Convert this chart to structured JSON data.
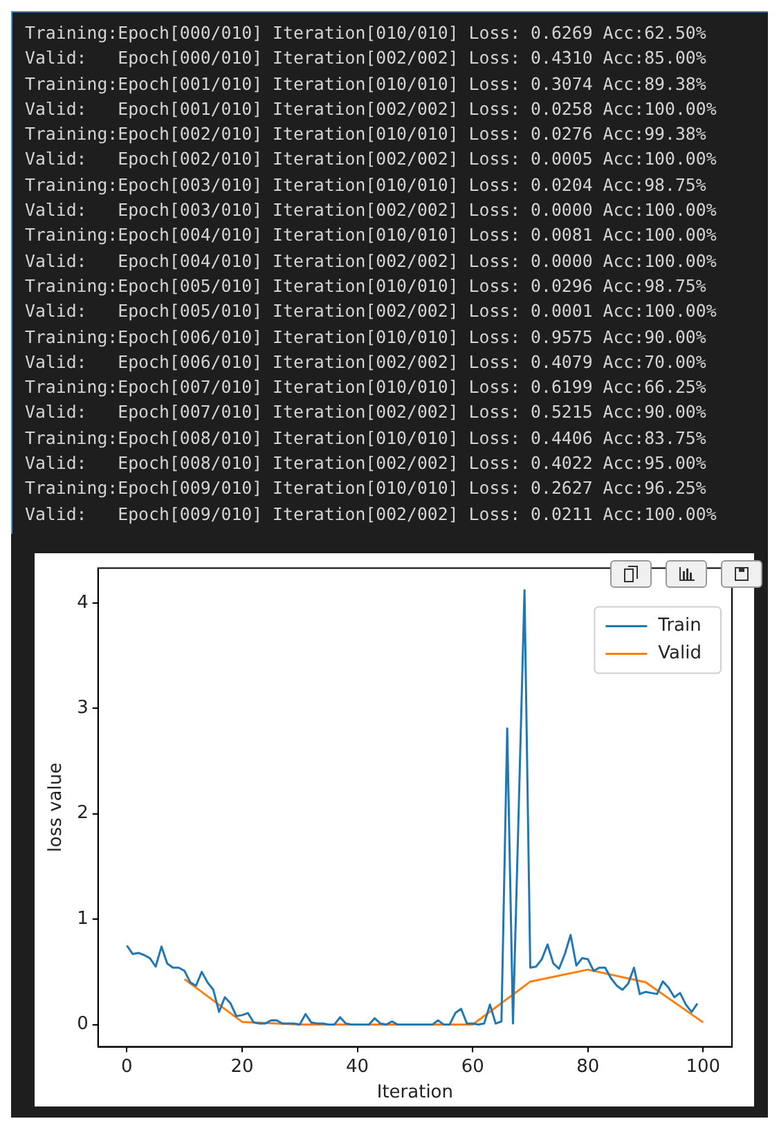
{
  "chart_data": {
    "type": "line",
    "xlabel": "Iteration",
    "ylabel": "loss value",
    "annotations": [
      "Training:Epoch[000/010] Iteration[010/010] Loss: 0.6269 Acc:62.50%",
      "Valid:   Epoch[000/010] Iteration[002/002] Loss: 0.4310 Acc:85.00%",
      "Training:Epoch[001/010] Iteration[010/010] Loss: 0.3074 Acc:89.38%",
      "Valid:   Epoch[001/010] Iteration[002/002] Loss: 0.0258 Acc:100.00%",
      "Training:Epoch[002/010] Iteration[010/010] Loss: 0.0276 Acc:99.38%",
      "Valid:   Epoch[002/010] Iteration[002/002] Loss: 0.0005 Acc:100.00%",
      "Training:Epoch[003/010] Iteration[010/010] Loss: 0.0204 Acc:98.75%",
      "Valid:   Epoch[003/010] Iteration[002/002] Loss: 0.0000 Acc:100.00%",
      "Training:Epoch[004/010] Iteration[010/010] Loss: 0.0081 Acc:100.00%",
      "Valid:   Epoch[004/010] Iteration[002/002] Loss: 0.0000 Acc:100.00%",
      "Training:Epoch[005/010] Iteration[010/010] Loss: 0.0296 Acc:98.75%",
      "Valid:   Epoch[005/010] Iteration[002/002] Loss: 0.0001 Acc:100.00%",
      "Training:Epoch[006/010] Iteration[010/010] Loss: 0.9575 Acc:90.00%",
      "Valid:   Epoch[006/010] Iteration[002/002] Loss: 0.4079 Acc:70.00%",
      "Training:Epoch[007/010] Iteration[010/010] Loss: 0.6199 Acc:66.25%",
      "Valid:   Epoch[007/010] Iteration[002/002] Loss: 0.5215 Acc:90.00%",
      "Training:Epoch[008/010] Iteration[010/010] Loss: 0.4406 Acc:83.75%",
      "Valid:   Epoch[008/010] Iteration[002/002] Loss: 0.4022 Acc:95.00%",
      "Training:Epoch[009/010] Iteration[010/010] Loss: 0.2627 Acc:96.25%",
      "Valid:   Epoch[009/010] Iteration[002/002] Loss: 0.0211 Acc:100.00%"
    ],
    "series": [
      {
        "name": "Train",
        "color": "#1f77b4",
        "x": [
          0,
          1,
          2,
          3,
          4,
          5,
          6,
          7,
          8,
          9,
          10,
          11,
          12,
          13,
          14,
          15,
          16,
          17,
          18,
          19,
          20,
          21,
          22,
          23,
          24,
          25,
          26,
          27,
          28,
          29,
          30,
          31,
          32,
          33,
          34,
          35,
          36,
          37,
          38,
          39,
          40,
          41,
          42,
          43,
          44,
          45,
          46,
          47,
          48,
          49,
          50,
          51,
          52,
          53,
          54,
          55,
          56,
          57,
          58,
          59,
          60,
          61,
          62,
          63,
          64,
          65,
          66,
          67,
          68,
          69,
          70,
          71,
          72,
          73,
          74,
          75,
          76,
          77,
          78,
          79,
          80,
          81,
          82,
          83,
          84,
          85,
          86,
          87,
          88,
          89,
          90,
          91,
          92,
          93,
          94,
          95,
          96,
          97,
          98,
          99
        ],
        "values": [
          0.75,
          0.67,
          0.68,
          0.66,
          0.63,
          0.55,
          0.74,
          0.58,
          0.54,
          0.54,
          0.51,
          0.4,
          0.37,
          0.5,
          0.4,
          0.33,
          0.12,
          0.26,
          0.2,
          0.08,
          0.09,
          0.11,
          0.02,
          0.01,
          0.01,
          0.04,
          0.04,
          0.01,
          0.01,
          0.01,
          0,
          0.1,
          0.02,
          0.01,
          0.01,
          0,
          0,
          0.07,
          0.01,
          0,
          0,
          0,
          0,
          0.06,
          0.01,
          0,
          0.03,
          0,
          0,
          0,
          0,
          0,
          0,
          0,
          0.04,
          0,
          0,
          0.11,
          0.15,
          0.01,
          0.01,
          0,
          0.01,
          0.19,
          0.01,
          0.03,
          2.81,
          0.01,
          2.05,
          4.12,
          0.54,
          0.55,
          0.62,
          0.76,
          0.58,
          0.53,
          0.67,
          0.85,
          0.56,
          0.63,
          0.62,
          0.51,
          0.54,
          0.54,
          0.44,
          0.37,
          0.33,
          0.39,
          0.54,
          0.29,
          0.31,
          0.3,
          0.29,
          0.41,
          0.35,
          0.26,
          0.3,
          0.19,
          0.12,
          0.2
        ]
      },
      {
        "name": "Valid",
        "color": "#ff7f0e",
        "x": [
          10,
          20,
          30,
          40,
          50,
          60,
          70,
          80,
          90,
          100
        ],
        "values": [
          0.431,
          0.0258,
          0.0005,
          0,
          0,
          0.0001,
          0.4079,
          0.5215,
          0.4022,
          0.0211
        ]
      }
    ],
    "xlim": [
      -5,
      105
    ],
    "xticks": [
      0,
      20,
      40,
      60,
      80,
      100
    ],
    "ylim": [
      -0.21,
      4.33
    ],
    "yticks": [
      0,
      1,
      2,
      3,
      4
    ],
    "grid": false,
    "legend": "top right",
    "marker": "none",
    "line_style": "solid"
  }
}
